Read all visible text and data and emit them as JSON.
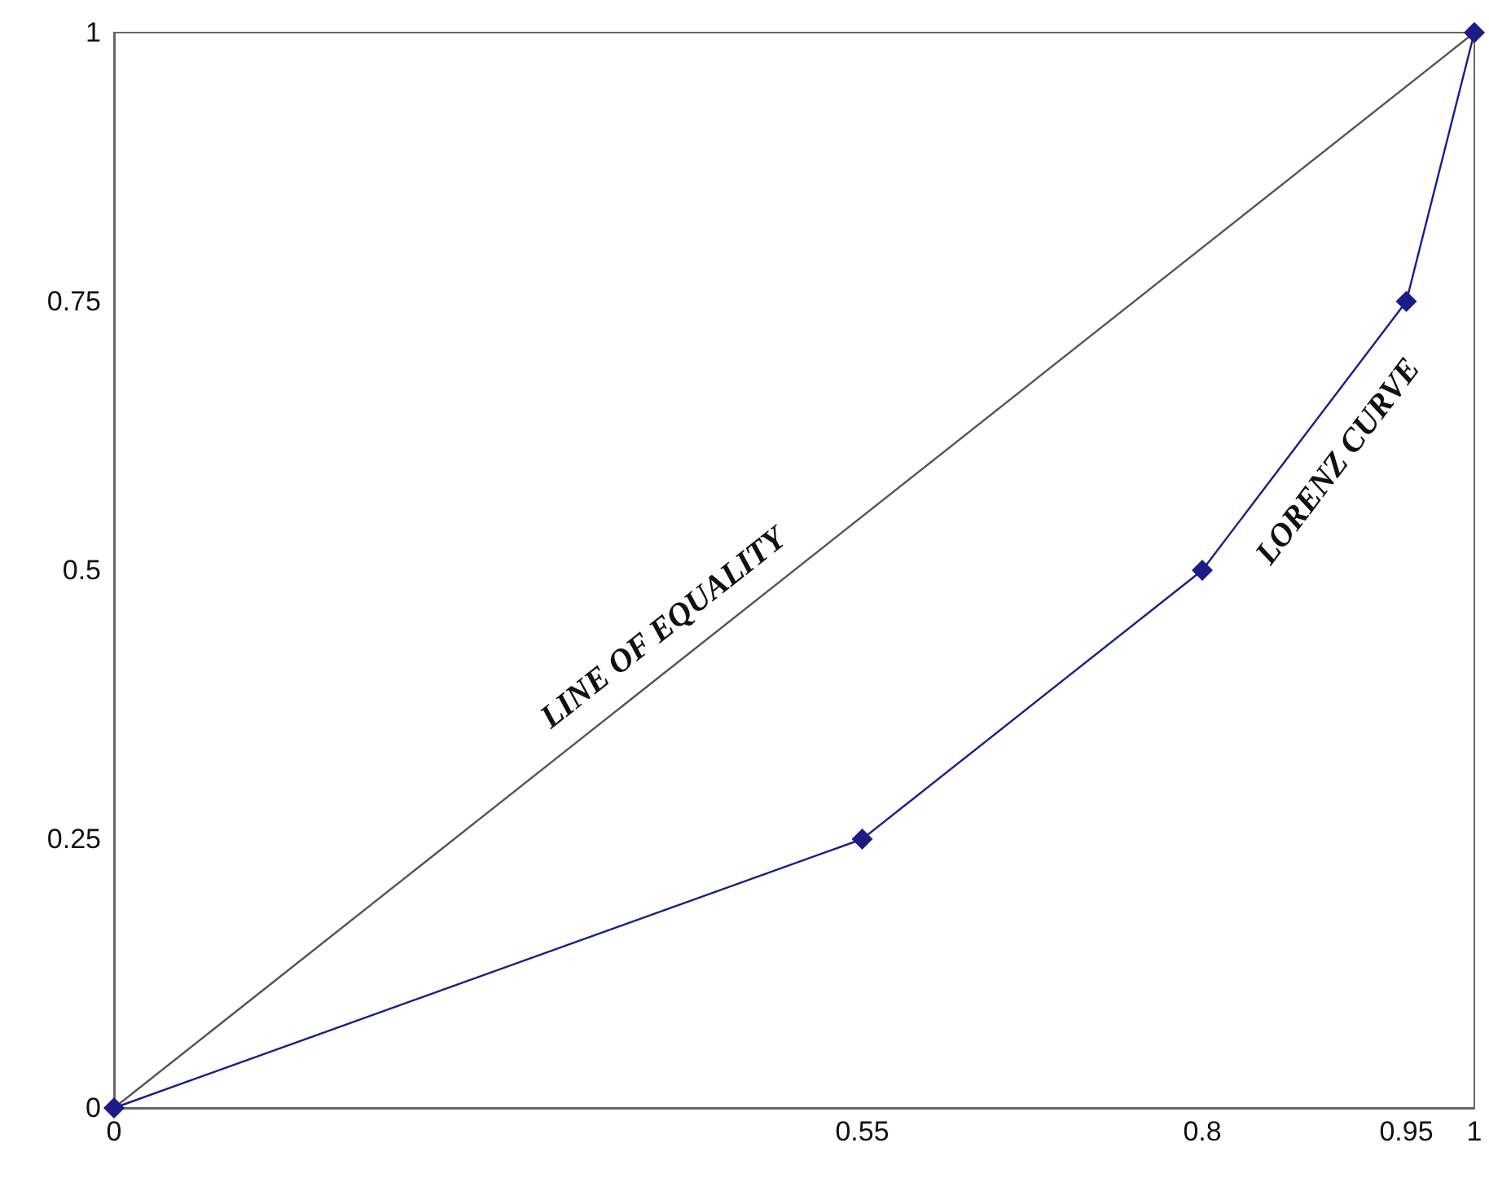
{
  "chart_data": {
    "type": "line",
    "xlim": [
      0,
      1
    ],
    "ylim": [
      0,
      1
    ],
    "xticks": [
      0,
      0.55,
      0.8,
      0.95,
      1
    ],
    "yticks": [
      0,
      0.25,
      0.5,
      0.75,
      1
    ],
    "series": [
      {
        "name": "LINE OF EQUALITY",
        "color": "#555555",
        "x": [
          0,
          1
        ],
        "values": [
          0,
          1
        ],
        "marker": "none"
      },
      {
        "name": "LORENZ CURVE",
        "color": "#1c1c86",
        "x": [
          0,
          0.55,
          0.8,
          0.95,
          1
        ],
        "values": [
          0,
          0.25,
          0.5,
          0.75,
          1
        ],
        "marker": "diamond"
      }
    ]
  }
}
